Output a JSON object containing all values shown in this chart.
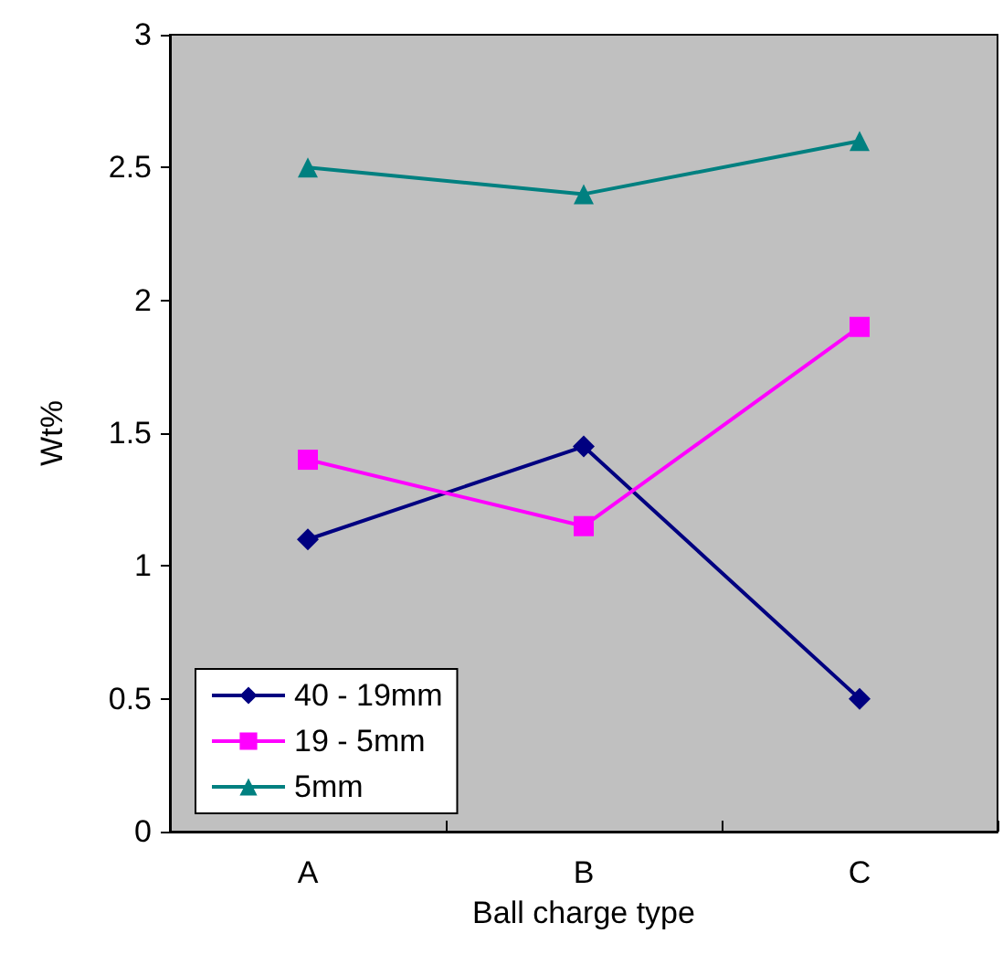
{
  "chart_data": {
    "type": "line",
    "xlabel": "Ball charge type",
    "ylabel": "Wt%",
    "categories": [
      "A",
      "B",
      "C"
    ],
    "series": [
      {
        "name": "40 - 19mm",
        "color": "#000080",
        "marker": "diamond",
        "values": [
          1.1,
          1.45,
          0.5
        ]
      },
      {
        "name": "19 - 5mm",
        "color": "#ff00ff",
        "marker": "square",
        "values": [
          1.4,
          1.15,
          1.9
        ]
      },
      {
        "name": "5mm",
        "color": "#008080",
        "marker": "triangle",
        "values": [
          2.5,
          2.4,
          2.6
        ]
      }
    ],
    "ylim": [
      0,
      3
    ],
    "yticks": [
      0,
      0.5,
      1,
      1.5,
      2,
      2.5,
      3
    ],
    "grid": false,
    "legend": "bottom left"
  }
}
